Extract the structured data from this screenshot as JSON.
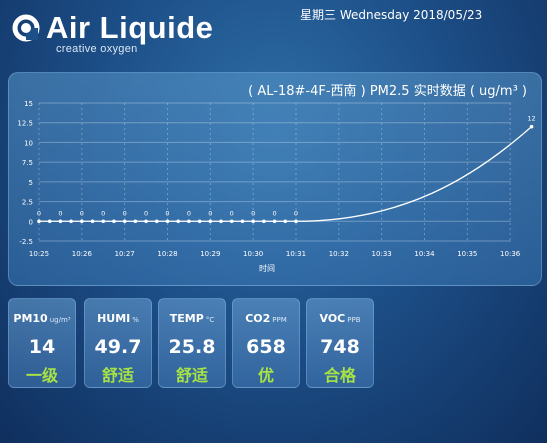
{
  "brand": {
    "name": "Air Liquide",
    "tagline": "creative oxygen",
    "logo_icon": "air-liquide-logo-icon"
  },
  "datetime": {
    "text": "星期三 Wednesday 2018/05/23"
  },
  "chart_data": {
    "type": "line",
    "title": "( AL-18#-4F-西南 ) PM2.5 实时数据 ( ug/m³ )",
    "xlabel": "时间",
    "ylabel": "",
    "ylim": [
      -2.5,
      15
    ],
    "yticks": [
      -2.5,
      0,
      2.5,
      5,
      7.5,
      10,
      12.5,
      15
    ],
    "ytick_labels": [
      "-2.5",
      "0",
      "2.5",
      "5",
      "7.5",
      "10",
      "12.5",
      "15"
    ],
    "x_ticks": [
      "10:25",
      "10:26",
      "10:27",
      "10:28",
      "10:29",
      "10:30",
      "10:31",
      "10:32",
      "10:33",
      "10:34",
      "10:35",
      "10:36"
    ],
    "grid": true,
    "series": [
      {
        "x": [
          0,
          0.25,
          0.5,
          0.75,
          1,
          1.25,
          1.5,
          1.75,
          2,
          2.25,
          2.5,
          2.75,
          3,
          3.25,
          3.5,
          3.75,
          4,
          4.25,
          4.5,
          4.75,
          5,
          5.25,
          5.5,
          5.75,
          6,
          11.5
        ],
        "values": [
          0,
          0,
          0,
          0,
          0,
          0,
          0,
          0,
          0,
          0,
          0,
          0,
          0,
          0,
          0,
          0,
          0,
          0,
          0,
          0,
          0,
          0,
          0,
          0,
          0,
          12
        ],
        "labels": [
          "0",
          "0",
          "0",
          "0",
          "0",
          "0",
          "0",
          "0",
          "0",
          "0",
          "0",
          "0",
          "0",
          "0",
          "0",
          "0",
          "0",
          "0",
          "0",
          "0",
          "0",
          "0",
          "0",
          "0",
          "0",
          "12"
        ]
      }
    ],
    "color": "#ffffff"
  },
  "cards": [
    {
      "label": "PM10",
      "unit": "ug/m³",
      "value": "14",
      "status": "一级"
    },
    {
      "label": "HUMI",
      "unit": "%",
      "value": "49.7",
      "status": "舒适"
    },
    {
      "label": "TEMP",
      "unit": "°C",
      "value": "25.8",
      "status": "舒适"
    },
    {
      "label": "CO2",
      "unit": "PPM",
      "value": "658",
      "status": "优"
    },
    {
      "label": "VOC",
      "unit": "PPB",
      "value": "748",
      "status": "合格"
    }
  ],
  "colors": {
    "status": "#a7e344",
    "background": "#1d4f88"
  }
}
